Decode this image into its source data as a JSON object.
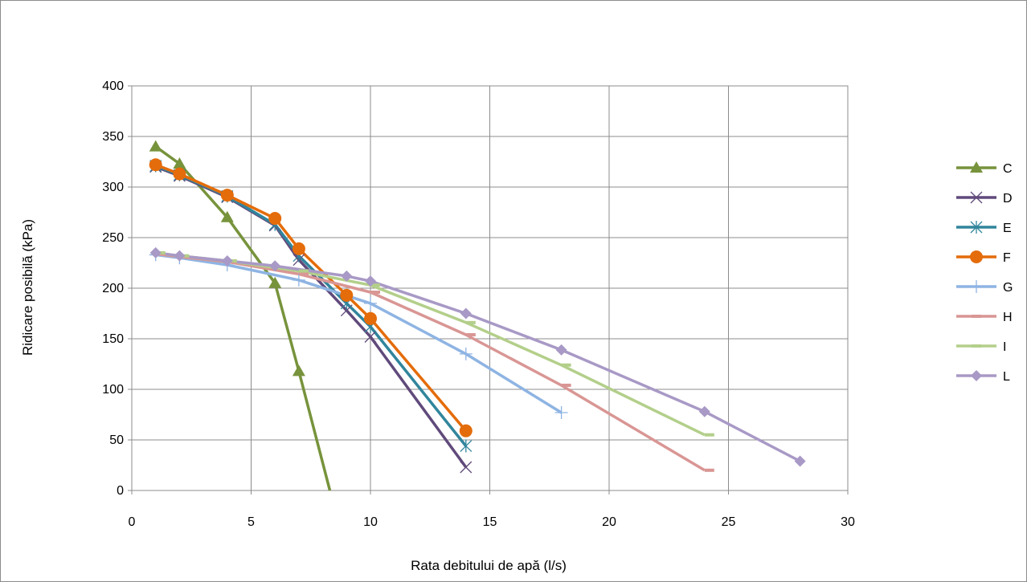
{
  "chart_data": {
    "type": "line",
    "title": "",
    "xlabel": "Rata debitului de apă (l/s)",
    "ylabel": "Ridicare posibilă (kPa)",
    "xlim": [
      0,
      30
    ],
    "ylim": [
      0,
      400
    ],
    "xticks": [
      "0",
      "5",
      "10",
      "15",
      "20",
      "25",
      "30"
    ],
    "yticks": [
      "0",
      "50",
      "100",
      "150",
      "200",
      "250",
      "300",
      "350",
      "400"
    ],
    "grid": true,
    "legend_position": "right",
    "series": [
      {
        "name": "C",
        "color": "#77933c",
        "marker": "triangle",
        "x": [
          1,
          2,
          4,
          6,
          7,
          8.3
        ],
        "y": [
          340,
          323,
          270,
          205,
          118,
          0
        ]
      },
      {
        "name": "D",
        "color": "#604a7b",
        "marker": "x",
        "x": [
          1,
          2,
          4,
          6,
          7,
          9,
          10,
          14
        ],
        "y": [
          320,
          311,
          290,
          262,
          228,
          178,
          152,
          23
        ]
      },
      {
        "name": "E",
        "color": "#31859c",
        "marker": "star",
        "x": [
          1,
          2,
          4,
          6,
          7,
          9,
          10,
          14
        ],
        "y": [
          321,
          312,
          291,
          263,
          232,
          185,
          162,
          44
        ]
      },
      {
        "name": "F",
        "color": "#e46c0a",
        "marker": "circle",
        "x": [
          1,
          2,
          4,
          6,
          7,
          9,
          10,
          14
        ],
        "y": [
          322,
          313,
          292,
          269,
          239,
          193,
          170,
          59
        ]
      },
      {
        "name": "G",
        "color": "#8eb4e3",
        "marker": "plus",
        "x": [
          1,
          2,
          4,
          7,
          10,
          14,
          18
        ],
        "y": [
          233,
          230,
          223,
          208,
          185,
          135,
          77
        ]
      },
      {
        "name": "H",
        "color": "#d99694",
        "marker": "dash",
        "x": [
          1,
          2,
          4,
          7,
          10,
          14,
          18,
          24
        ],
        "y": [
          234,
          231,
          226,
          214,
          196,
          154,
          104,
          20
        ]
      },
      {
        "name": "I",
        "color": "#b3cf8a",
        "marker": "dash",
        "x": [
          1,
          2,
          4,
          7,
          10,
          14,
          18,
          24
        ],
        "y": [
          235,
          232,
          227,
          217,
          203,
          166,
          124,
          55
        ]
      },
      {
        "name": "L",
        "color": "#a899c6",
        "marker": "diamond",
        "x": [
          1,
          2,
          4,
          6,
          9,
          10,
          14,
          18,
          24,
          28
        ],
        "y": [
          235,
          232,
          227,
          222,
          212,
          207,
          175,
          139,
          78,
          29
        ]
      }
    ]
  }
}
